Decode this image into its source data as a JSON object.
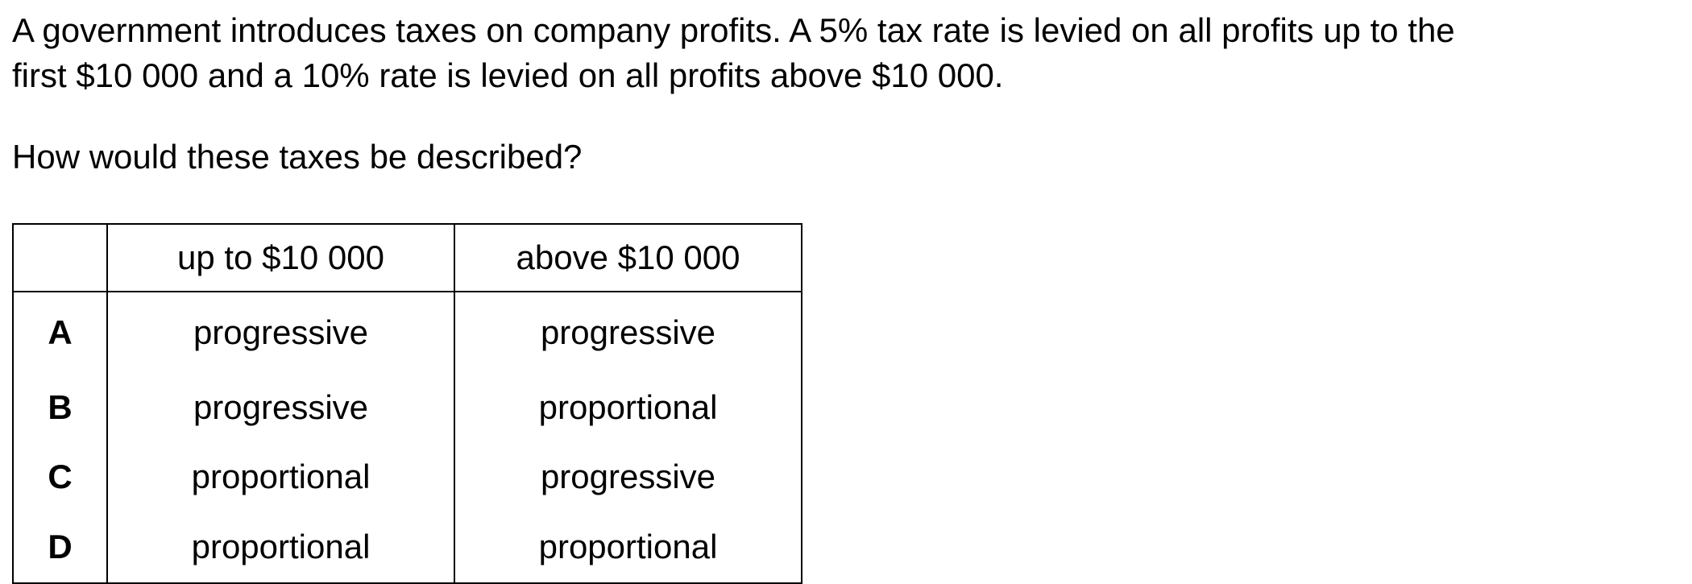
{
  "intro": {
    "line1": "A government introduces taxes on company profits. A 5% tax rate is levied on all profits up to the",
    "line2": "first $10 000 and a 10% rate is levied on all profits above $10 000."
  },
  "question": "How would these taxes be described?",
  "table": {
    "headers": [
      "",
      "up to $10 000",
      "above $10 000"
    ],
    "rows": [
      {
        "key": "A",
        "col1": "progressive",
        "col2": "progressive"
      },
      {
        "key": "B",
        "col1": "progressive",
        "col2": "proportional"
      },
      {
        "key": "C",
        "col1": "proportional",
        "col2": "progressive"
      },
      {
        "key": "D",
        "col1": "proportional",
        "col2": "proportional"
      }
    ]
  }
}
